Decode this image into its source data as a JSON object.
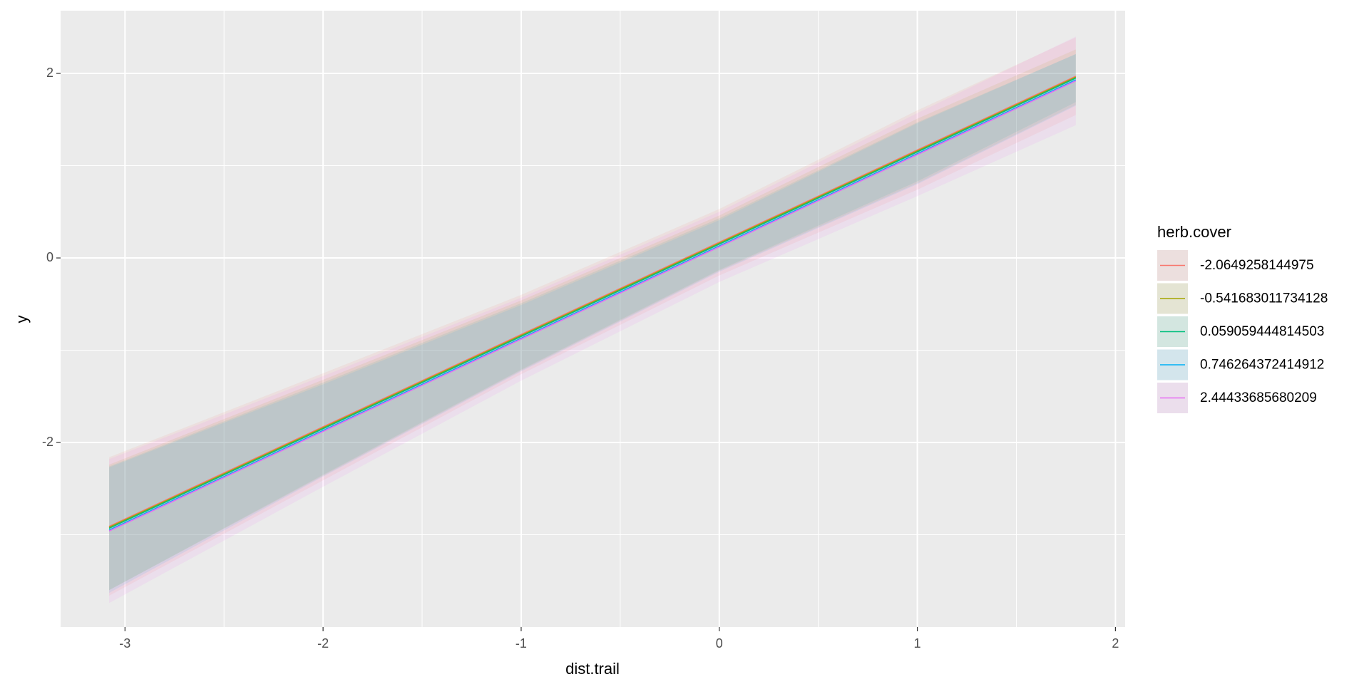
{
  "chart_data": {
    "type": "line",
    "x_label": "dist.trail",
    "y_label": "y",
    "legend_title": "herb.cover",
    "legend_position": "right",
    "x": [
      -3.08,
      -2,
      -1,
      0,
      1,
      1.8
    ],
    "series": [
      {
        "name": "-2.0649258144975",
        "color": "#F8766D",
        "values": [
          -2.91,
          -1.83,
          -0.83,
          0.17,
          1.17,
          1.97
        ],
        "lower": [
          -3.66,
          -2.41,
          -1.26,
          -0.19,
          0.74,
          1.55
        ],
        "upper": [
          -2.16,
          -1.25,
          -0.4,
          0.53,
          1.6,
          2.39
        ]
      },
      {
        "name": "-0.541683011734128",
        "color": "#A3A500",
        "values": [
          -2.92,
          -1.84,
          -0.84,
          0.16,
          1.16,
          1.96
        ],
        "lower": [
          -3.6,
          -2.36,
          -1.22,
          -0.14,
          0.81,
          1.66
        ],
        "upper": [
          -2.24,
          -1.32,
          -0.46,
          0.46,
          1.51,
          2.26
        ]
      },
      {
        "name": "0.059059444814503",
        "color": "#00BF7D",
        "values": [
          -2.93,
          -1.85,
          -0.85,
          0.15,
          1.15,
          1.95
        ],
        "lower": [
          -3.6,
          -2.35,
          -1.21,
          -0.13,
          0.83,
          1.69
        ],
        "upper": [
          -2.26,
          -1.35,
          -0.49,
          0.43,
          1.47,
          2.21
        ]
      },
      {
        "name": "0.746264372414912",
        "color": "#00B0F6",
        "values": [
          -2.95,
          -1.87,
          -0.87,
          0.13,
          1.13,
          1.93
        ],
        "lower": [
          -3.63,
          -2.37,
          -1.23,
          -0.15,
          0.8,
          1.65
        ],
        "upper": [
          -2.27,
          -1.37,
          -0.51,
          0.41,
          1.46,
          2.21
        ]
      },
      {
        "name": "2.44433685680209",
        "color": "#E76BF3",
        "values": [
          -2.96,
          -1.88,
          -0.88,
          0.12,
          1.12,
          1.92
        ],
        "lower": [
          -3.74,
          -2.48,
          -1.33,
          -0.26,
          0.67,
          1.44
        ],
        "upper": [
          -2.18,
          -1.28,
          -0.43,
          0.5,
          1.57,
          2.4
        ]
      }
    ],
    "ribbon_opacity": 0.1,
    "xlim": [
      -3.325,
      2.049
    ],
    "xticks": [
      -3,
      -2,
      -1,
      0,
      1,
      2
    ],
    "ylim": [
      -4.0,
      2.68
    ],
    "yticks": [
      -2,
      0,
      2
    ],
    "grid": true,
    "minor_grid": true,
    "panel_color": "#EBEBEB"
  }
}
